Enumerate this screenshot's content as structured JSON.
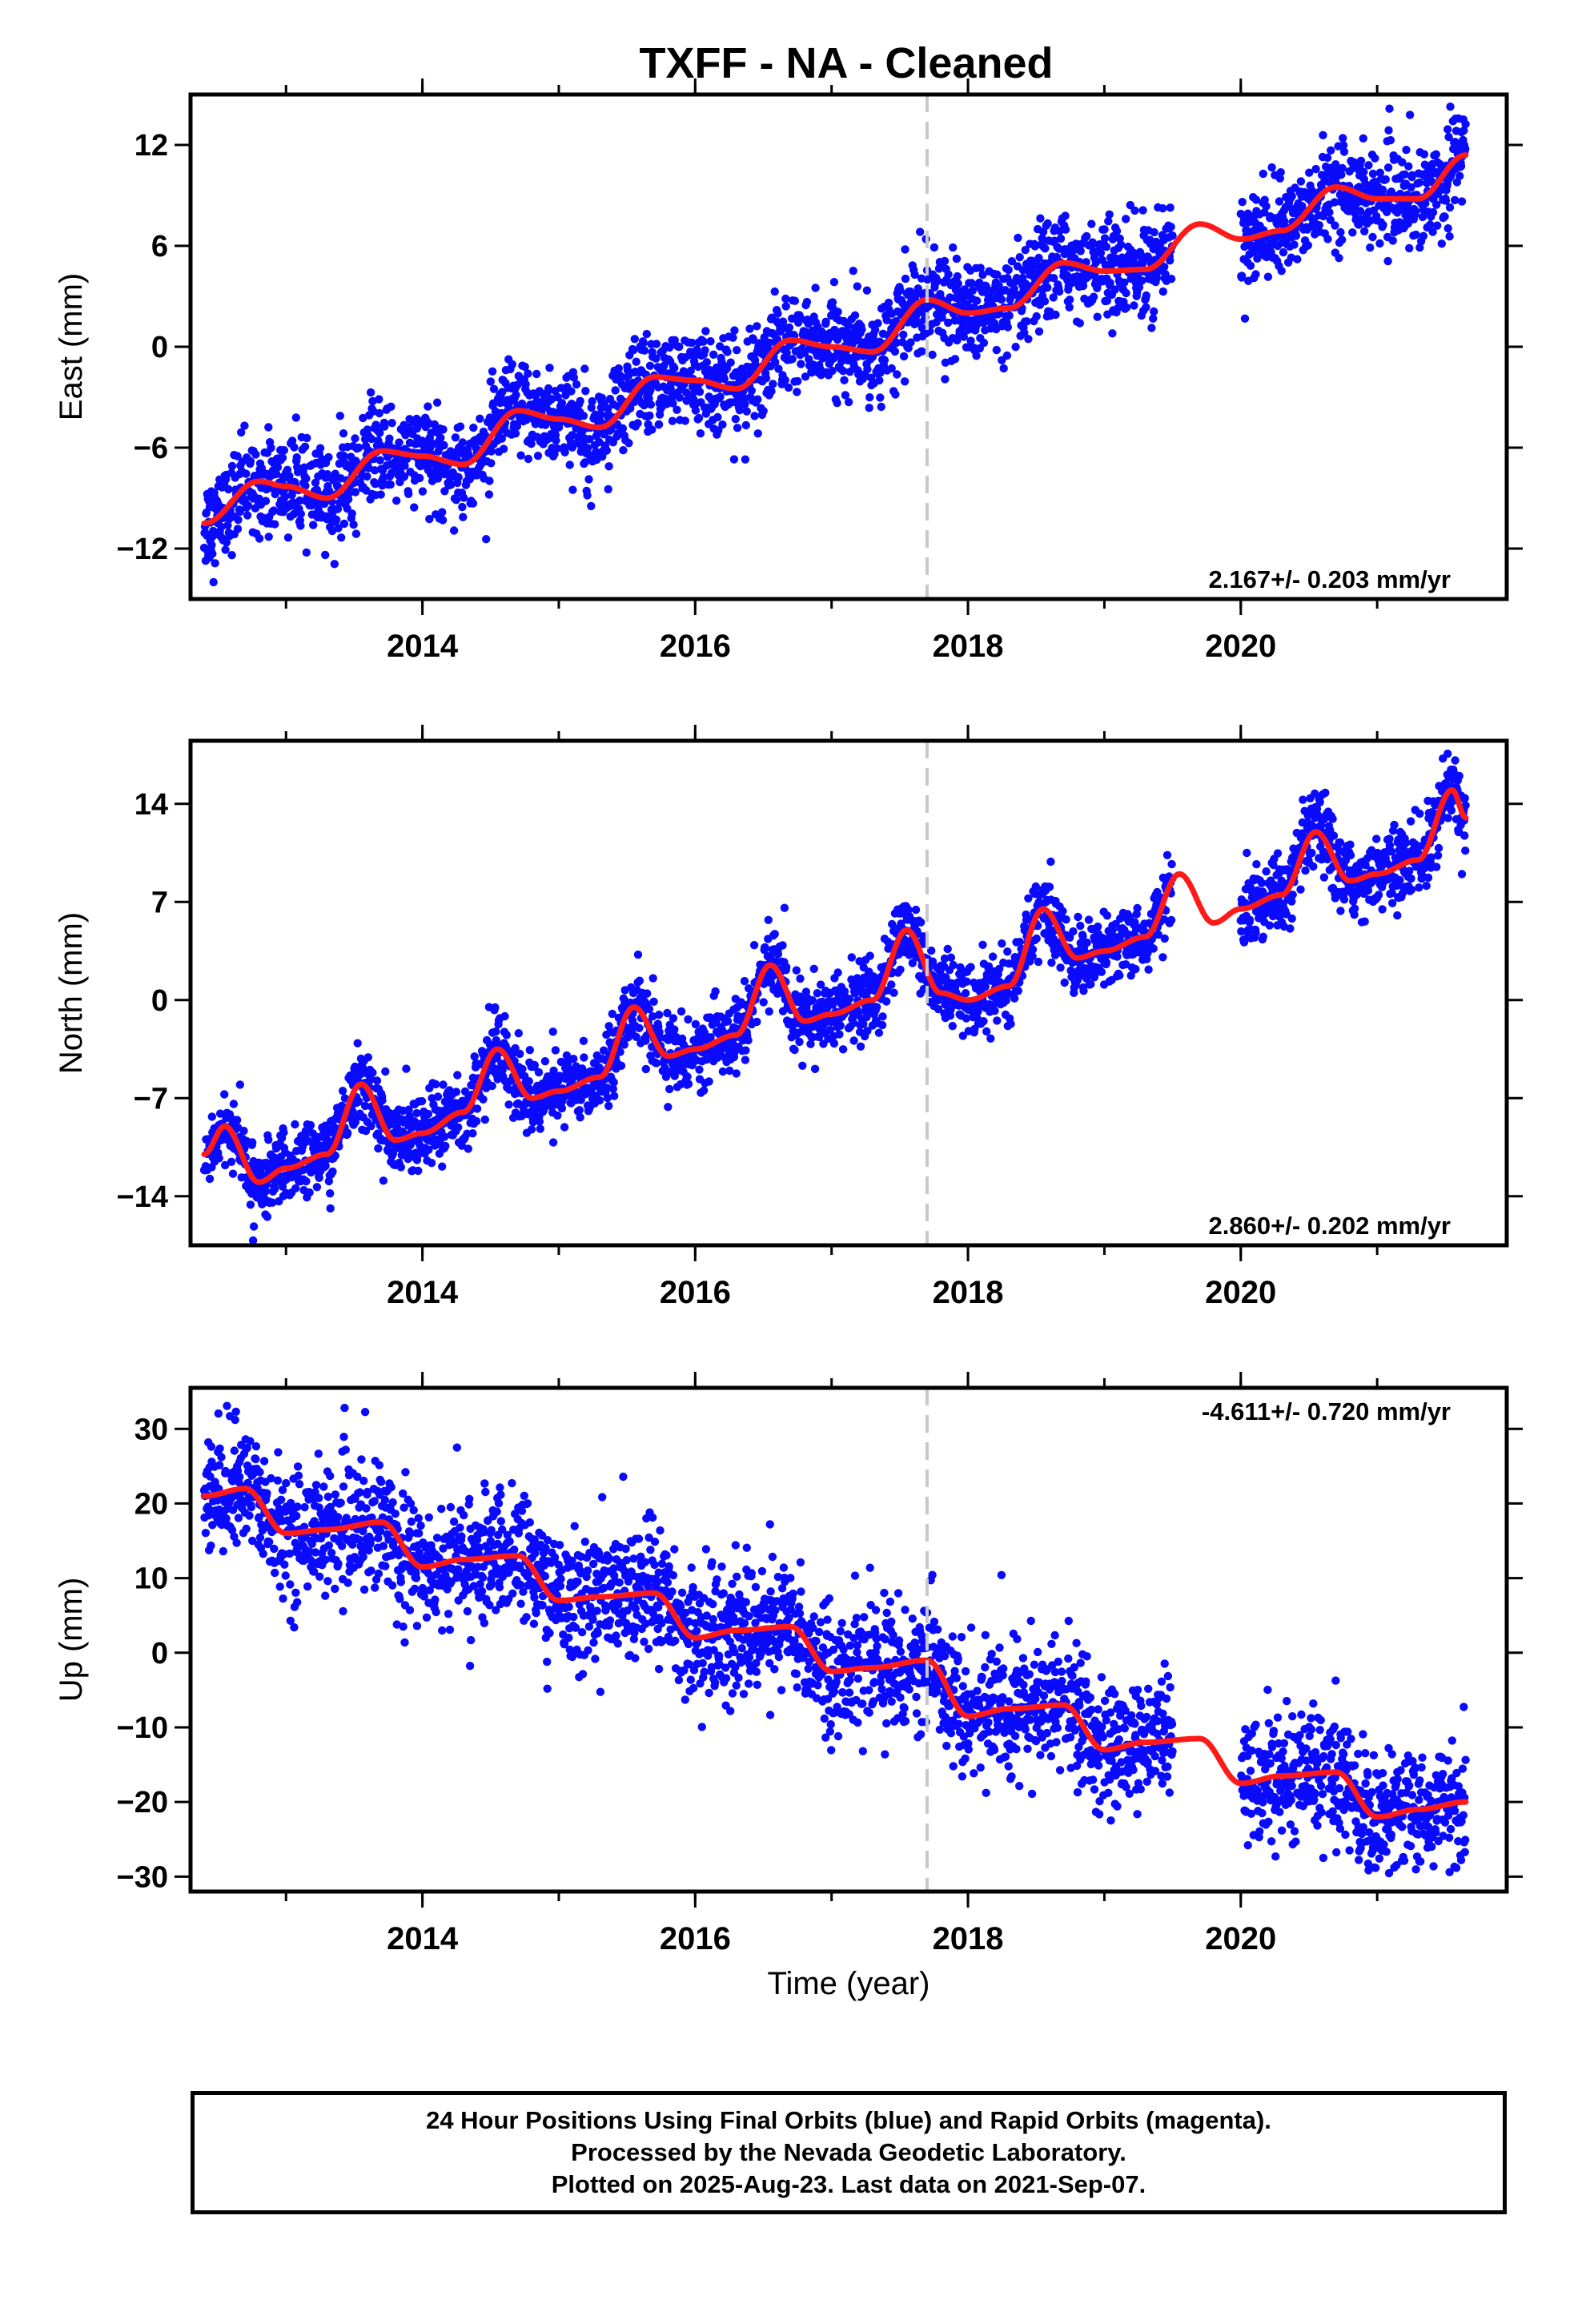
{
  "title": "TXFF  - NA - Cleaned",
  "xlabel": "Time (year)",
  "footer": {
    "line1": "24 Hour Positions Using Final Orbits (blue) and Rapid Orbits (magenta).",
    "line2": "Processed by the Nevada Geodetic Laboratory.",
    "line3": "Plotted on 2025-Aug-23. Last data on 2021-Sep-07."
  },
  "colors": {
    "final_points": "#0a0aff",
    "fit_line": "#ff1a1a",
    "event_line": "#c8c8c8"
  },
  "chart_data": [
    {
      "type": "scatter",
      "component": "east",
      "ylabel": "East (mm)",
      "rate_label": "2.167+/- 0.203 mm/yr",
      "xlim": [
        2012.3,
        2021.95
      ],
      "ylim": [
        -15,
        15
      ],
      "xticks": [
        2014,
        2016,
        2018,
        2020
      ],
      "yticks": [
        -12,
        -6,
        0,
        6,
        12
      ],
      "event_line_x": 2017.7,
      "data_span": [
        2012.4,
        2021.65
      ],
      "data_gap": [
        2019.5,
        2020.0
      ],
      "scatter_sigma_mm": 1.4,
      "fit_line": {
        "x": [
          2012.4,
          2012.8,
          2013.0,
          2013.3,
          2013.7,
          2014.0,
          2014.3,
          2014.7,
          2015.0,
          2015.3,
          2015.7,
          2016.0,
          2016.3,
          2016.7,
          2017.0,
          2017.3,
          2017.7,
          2018.0,
          2018.3,
          2018.7,
          2019.0,
          2019.3,
          2019.7,
          2020.0,
          2020.3,
          2020.7,
          2021.0,
          2021.3,
          2021.65
        ],
        "y": [
          -10.5,
          -8.0,
          -8.3,
          -9.0,
          -6.2,
          -6.5,
          -7.0,
          -3.8,
          -4.3,
          -4.8,
          -1.8,
          -2.0,
          -2.5,
          0.4,
          0.0,
          -0.3,
          2.8,
          2.0,
          2.3,
          5.0,
          4.5,
          4.6,
          7.3,
          6.4,
          6.9,
          9.5,
          8.8,
          8.8,
          11.4
        ]
      }
    },
    {
      "type": "scatter",
      "component": "north",
      "ylabel": "North (mm)",
      "rate_label": "2.860+/- 0.202 mm/yr",
      "xlim": [
        2012.3,
        2021.95
      ],
      "ylim": [
        -17.5,
        18.5
      ],
      "xticks": [
        2014,
        2016,
        2018,
        2020
      ],
      "yticks": [
        -14,
        -7,
        0,
        7,
        14
      ],
      "event_line_x": 2017.7,
      "data_span": [
        2012.4,
        2021.65
      ],
      "data_gap": [
        2019.5,
        2020.0
      ],
      "scatter_sigma_mm": 1.3,
      "fit_line": {
        "x": [
          2012.4,
          2012.55,
          2012.8,
          2013.0,
          2013.3,
          2013.55,
          2013.8,
          2014.0,
          2014.3,
          2014.55,
          2014.8,
          2015.0,
          2015.3,
          2015.55,
          2015.8,
          2016.0,
          2016.3,
          2016.55,
          2016.8,
          2017.0,
          2017.3,
          2017.55,
          2017.8,
          2018.0,
          2018.3,
          2018.55,
          2018.8,
          2019.0,
          2019.3,
          2019.55,
          2019.8,
          2020.0,
          2020.3,
          2020.55,
          2020.8,
          2021.0,
          2021.3,
          2021.55,
          2021.65
        ],
        "y": [
          -11.0,
          -9.0,
          -13.0,
          -12.0,
          -11.0,
          -6.0,
          -10.0,
          -9.5,
          -8.0,
          -3.5,
          -7.0,
          -6.5,
          -5.5,
          -0.5,
          -4.0,
          -3.5,
          -2.5,
          2.5,
          -1.5,
          -1.0,
          0.0,
          5.0,
          0.5,
          0.0,
          1.0,
          6.5,
          3.0,
          3.5,
          4.5,
          9.0,
          5.5,
          6.5,
          7.5,
          12.0,
          8.5,
          9.0,
          10.0,
          15.0,
          13.0
        ]
      }
    },
    {
      "type": "scatter",
      "component": "up",
      "ylabel": "Up (mm)",
      "rate_label": "-4.611+/- 0.720 mm/yr",
      "xlim": [
        2012.3,
        2021.95
      ],
      "ylim": [
        -32,
        35.5
      ],
      "xticks": [
        2014,
        2016,
        2018,
        2020
      ],
      "yticks": [
        -30,
        -20,
        -10,
        0,
        10,
        20,
        30
      ],
      "event_line_x": 2017.7,
      "data_span": [
        2012.4,
        2021.65
      ],
      "data_gap": [
        2019.5,
        2020.0
      ],
      "scatter_sigma_mm": 4.2,
      "fit_line": {
        "x": [
          2012.4,
          2012.7,
          2013.0,
          2013.3,
          2013.7,
          2014.0,
          2014.3,
          2014.7,
          2015.0,
          2015.3,
          2015.7,
          2016.0,
          2016.3,
          2016.7,
          2017.0,
          2017.3,
          2017.7,
          2018.0,
          2018.3,
          2018.7,
          2019.0,
          2019.3,
          2019.7,
          2020.0,
          2020.3,
          2020.7,
          2021.0,
          2021.3,
          2021.65
        ],
        "y": [
          21.0,
          22.0,
          16.0,
          16.5,
          17.5,
          11.5,
          12.5,
          13.0,
          7.0,
          7.5,
          8.0,
          2.0,
          3.0,
          3.5,
          -2.5,
          -2.0,
          -1.0,
          -8.5,
          -7.5,
          -7.0,
          -13.0,
          -12.0,
          -11.5,
          -17.5,
          -16.5,
          -16.0,
          -22.0,
          -21.0,
          -20.0
        ]
      }
    }
  ]
}
